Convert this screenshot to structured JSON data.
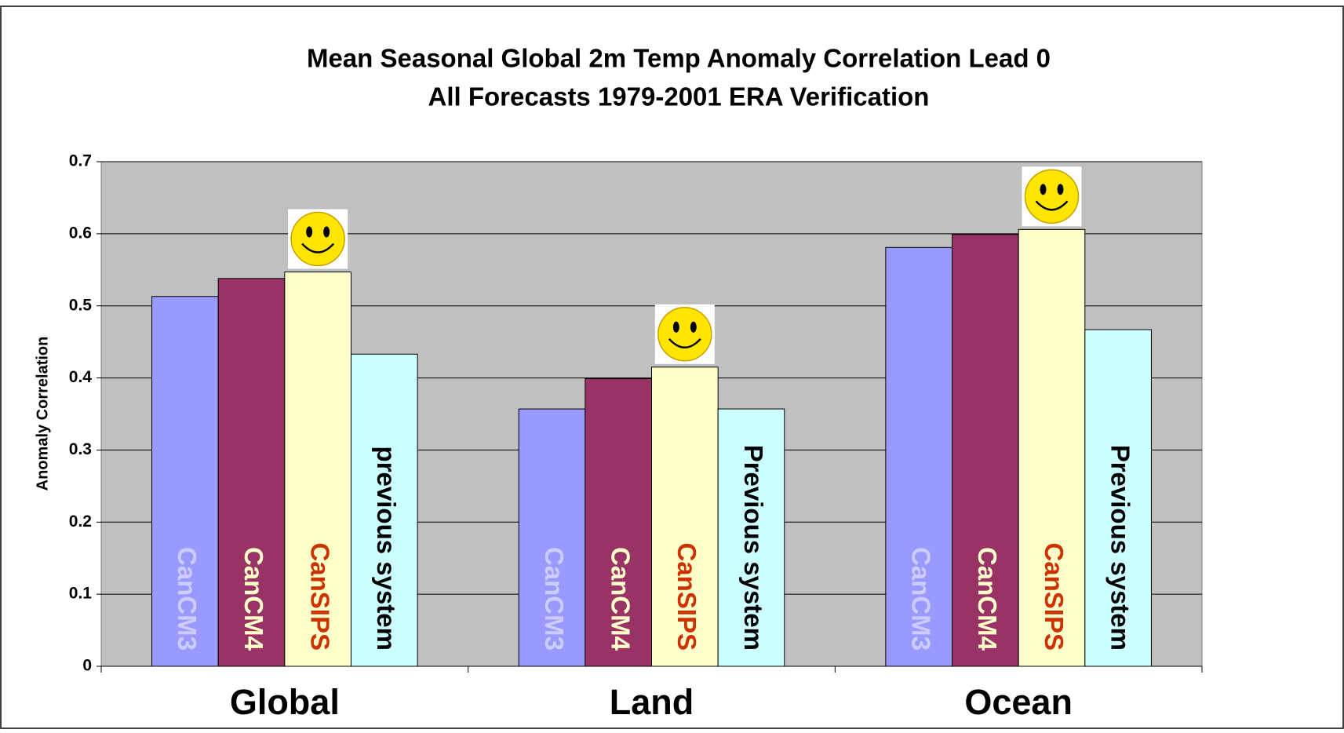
{
  "chart_data": {
    "type": "bar",
    "title": "Mean Seasonal Global 2m Temp Anomaly Correlation Lead 0",
    "subtitle": "All Forecasts 1979-2001  ERA Verification",
    "y_label": "Anomaly Correlation",
    "categories": [
      "Global",
      "Land",
      "Ocean"
    ],
    "series": [
      {
        "color": "#9999ff",
        "label_color": "#ccccff",
        "values": [
          0.513,
          0.357,
          0.581
        ]
      },
      {
        "color": "#993366",
        "label_color": "#ffffcc",
        "values": [
          0.538,
          0.399,
          0.599
        ]
      },
      {
        "color": "#ffffcc",
        "label_color": "#cc3300",
        "values": [
          0.547,
          0.415,
          0.606
        ]
      },
      {
        "color": "#ccffff",
        "label_color": "#000000",
        "values": [
          0.433,
          0.357,
          0.467
        ]
      }
    ],
    "bar_labels": [
      [
        "CanCM3",
        "CanCM4",
        "CanSIPS",
        "previous system"
      ],
      [
        "CanCM3",
        "CanCM4",
        "CanSIPS",
        "Previous system"
      ],
      [
        "CanCM3",
        "CanCM4",
        "CanSIPS",
        "Previous system"
      ]
    ],
    "ylim": [
      0,
      0.7
    ],
    "yticks": [
      0,
      0.1,
      0.2,
      0.3,
      0.4,
      0.5,
      0.6,
      0.7
    ],
    "grid": true,
    "plot_background": "#c0c0c0"
  }
}
